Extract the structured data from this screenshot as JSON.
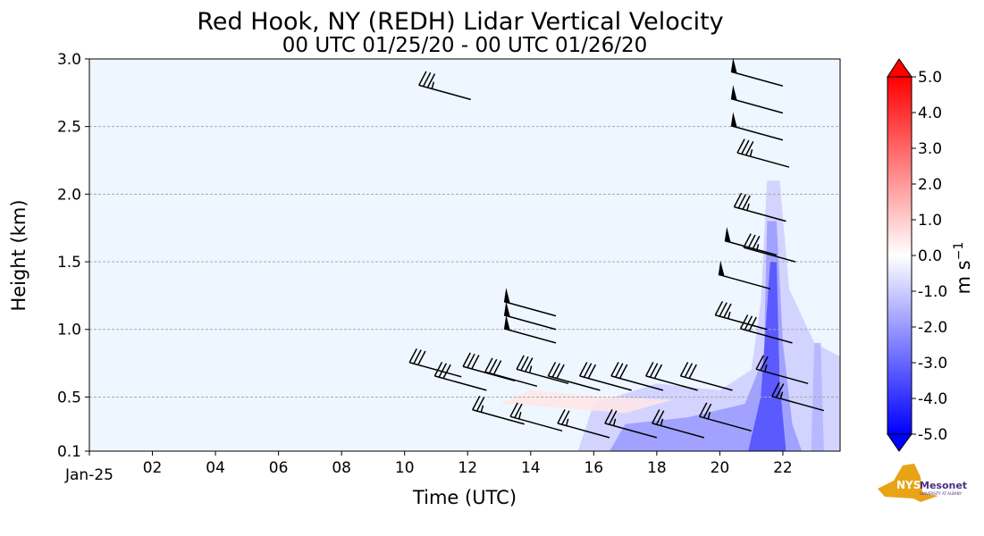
{
  "chart_data": {
    "type": "heatmap",
    "title": "Red Hook, NY (REDH) Lidar Vertical Velocity",
    "subtitle": "00 UTC 01/25/20 - 00 UTC 01/26/20",
    "xlabel": "Time (UTC)",
    "ylabel": "Height (km)",
    "xlim": [
      0,
      23.8
    ],
    "ylim": [
      0.1,
      3.0
    ],
    "x_ticks": [
      {
        "v": 0,
        "label": "Jan-25"
      },
      {
        "v": 2,
        "label": "02"
      },
      {
        "v": 4,
        "label": "04"
      },
      {
        "v": 6,
        "label": "06"
      },
      {
        "v": 8,
        "label": "08"
      },
      {
        "v": 10,
        "label": "10"
      },
      {
        "v": 12,
        "label": "12"
      },
      {
        "v": 14,
        "label": "14"
      },
      {
        "v": 16,
        "label": "16"
      },
      {
        "v": 18,
        "label": "18"
      },
      {
        "v": 20,
        "label": "20"
      },
      {
        "v": 22,
        "label": "22"
      }
    ],
    "y_ticks": [
      {
        "v": 0.1,
        "label": "0.1"
      },
      {
        "v": 0.5,
        "label": "0.5"
      },
      {
        "v": 1.0,
        "label": "1.0"
      },
      {
        "v": 1.5,
        "label": "1.5"
      },
      {
        "v": 2.0,
        "label": "2.0"
      },
      {
        "v": 2.5,
        "label": "2.5"
      },
      {
        "v": 3.0,
        "label": "3.0"
      }
    ],
    "grid": "horizontal dashed",
    "colorbar": {
      "label": "m s",
      "label_exp": "−1",
      "min": -5.0,
      "max": 5.0,
      "step": 0.5,
      "ticks": [
        "5.0",
        "4.0",
        "3.0",
        "2.0",
        "1.0",
        "0.0",
        "-1.0",
        "-2.0",
        "-3.0",
        "-4.0",
        "-5.0"
      ],
      "colors": {
        "neg": "#0000ff",
        "zero": "#ffffff",
        "pos": "#ff0000",
        "background": "#eef6ff"
      }
    },
    "velocity_regions": [
      {
        "w": -1.0,
        "pts": [
          [
            15.5,
            0.1
          ],
          [
            16,
            0.45
          ],
          [
            18,
            0.6
          ],
          [
            20,
            0.55
          ],
          [
            21,
            0.7
          ],
          [
            21.3,
            1.2
          ],
          [
            21.5,
            2.1
          ],
          [
            21.9,
            2.1
          ],
          [
            22.2,
            1.3
          ],
          [
            23,
            0.9
          ],
          [
            23.8,
            0.8
          ],
          [
            23.8,
            0.1
          ]
        ]
      },
      {
        "w": -2.0,
        "pts": [
          [
            16.5,
            0.1
          ],
          [
            17,
            0.3
          ],
          [
            19,
            0.35
          ],
          [
            20.8,
            0.45
          ],
          [
            21.4,
            0.8
          ],
          [
            21.5,
            1.8
          ],
          [
            21.8,
            1.8
          ],
          [
            22,
            0.9
          ],
          [
            22.3,
            0.3
          ],
          [
            22.6,
            0.1
          ]
        ]
      },
      {
        "w": -3.5,
        "pts": [
          [
            20.9,
            0.1
          ],
          [
            21.3,
            0.5
          ],
          [
            21.6,
            1.5
          ],
          [
            21.8,
            1.5
          ],
          [
            21.9,
            0.6
          ],
          [
            22.1,
            0.1
          ]
        ]
      },
      {
        "w": -1.5,
        "pts": [
          [
            22.9,
            0.1
          ],
          [
            23.0,
            0.9
          ],
          [
            23.2,
            0.9
          ],
          [
            23.3,
            0.1
          ]
        ]
      },
      {
        "w": 0.5,
        "pts": [
          [
            13,
            0.45
          ],
          [
            14,
            0.55
          ],
          [
            16.5,
            0.5
          ],
          [
            18.5,
            0.48
          ],
          [
            17,
            0.38
          ],
          [
            15,
            0.42
          ]
        ]
      }
    ],
    "wind_barbs": [
      {
        "t": 12.1,
        "h": 2.7,
        "kt": 35
      },
      {
        "t": 14.8,
        "h": 1.1,
        "kt": 50
      },
      {
        "t": 14.8,
        "h": 1.0,
        "kt": 50
      },
      {
        "t": 14.8,
        "h": 0.9,
        "kt": 50
      },
      {
        "t": 11.8,
        "h": 0.65,
        "kt": 30
      },
      {
        "t": 12.6,
        "h": 0.55,
        "kt": 30
      },
      {
        "t": 13.5,
        "h": 0.62,
        "kt": 30
      },
      {
        "t": 14.2,
        "h": 0.58,
        "kt": 30
      },
      {
        "t": 15.2,
        "h": 0.6,
        "kt": 35
      },
      {
        "t": 16.2,
        "h": 0.55,
        "kt": 30
      },
      {
        "t": 17.2,
        "h": 0.55,
        "kt": 30
      },
      {
        "t": 18.2,
        "h": 0.55,
        "kt": 30
      },
      {
        "t": 19.3,
        "h": 0.55,
        "kt": 30
      },
      {
        "t": 20.4,
        "h": 0.55,
        "kt": 30
      },
      {
        "t": 13.8,
        "h": 0.3,
        "kt": 25
      },
      {
        "t": 15.0,
        "h": 0.25,
        "kt": 25
      },
      {
        "t": 16.5,
        "h": 0.2,
        "kt": 25
      },
      {
        "t": 18.0,
        "h": 0.2,
        "kt": 25
      },
      {
        "t": 19.5,
        "h": 0.2,
        "kt": 25
      },
      {
        "t": 21.0,
        "h": 0.25,
        "kt": 25
      },
      {
        "t": 22.0,
        "h": 2.8,
        "kt": 50
      },
      {
        "t": 22.0,
        "h": 2.6,
        "kt": 50
      },
      {
        "t": 22.0,
        "h": 2.4,
        "kt": 50
      },
      {
        "t": 22.2,
        "h": 2.2,
        "kt": 35
      },
      {
        "t": 22.1,
        "h": 1.8,
        "kt": 35
      },
      {
        "t": 21.8,
        "h": 1.55,
        "kt": 50
      },
      {
        "t": 21.6,
        "h": 1.3,
        "kt": 50
      },
      {
        "t": 22.4,
        "h": 1.5,
        "kt": 35
      },
      {
        "t": 21.5,
        "h": 1.0,
        "kt": 35
      },
      {
        "t": 22.3,
        "h": 0.9,
        "kt": 30
      },
      {
        "t": 22.8,
        "h": 0.6,
        "kt": 25
      },
      {
        "t": 23.3,
        "h": 0.4,
        "kt": 25
      }
    ]
  },
  "logo": {
    "text1": "NYS",
    "text2": "Mesonet",
    "text3": "UNIVERSITY AT ALBANY"
  }
}
